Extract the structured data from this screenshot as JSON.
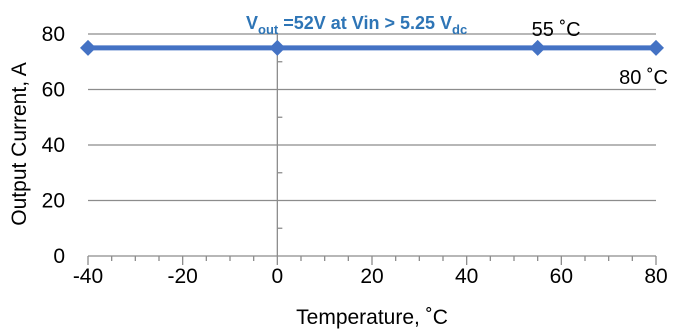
{
  "chart_data": {
    "type": "line",
    "subtitle_main": "V",
    "subtitle_sub": "out",
    "subtitle_rest": " =52V at Vin > 5.25 V",
    "subtitle_tail": "dc",
    "xlabel": "Temperature, ˚C",
    "ylabel": "Output Current, A",
    "xlim": [
      -40,
      80
    ],
    "ylim": [
      0,
      80
    ],
    "xticks": [
      -40,
      -20,
      0,
      20,
      40,
      60,
      80
    ],
    "yticks": [
      0,
      20,
      40,
      60,
      80
    ],
    "grid": "horizontal",
    "series": [
      {
        "color": "#4472c4",
        "points": [
          {
            "x": -40,
            "y": 75
          },
          {
            "x": 0,
            "y": 75
          },
          {
            "x": 55,
            "y": 75
          },
          {
            "x": 80,
            "y": 75
          }
        ]
      }
    ],
    "annotations": [
      {
        "text": "55 ˚C",
        "x": 55,
        "y": 75
      },
      {
        "text": "80 ˚C",
        "x": 80,
        "y": 75
      }
    ]
  }
}
